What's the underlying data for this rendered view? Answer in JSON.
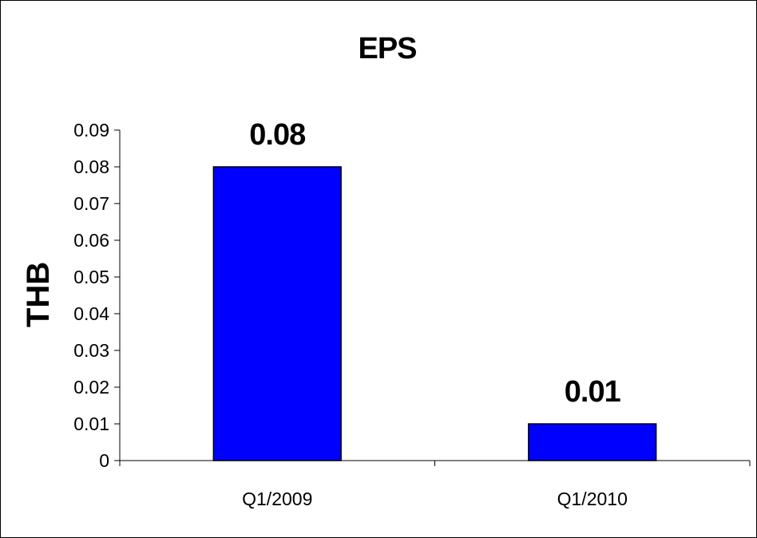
{
  "chart_data": {
    "type": "bar",
    "title": "EPS",
    "xlabel": "",
    "ylabel": "THB",
    "categories": [
      "Q1/2009",
      "Q1/2010"
    ],
    "values": [
      0.08,
      0.01
    ],
    "data_labels": [
      "0.08",
      "0.01"
    ],
    "ylim": [
      0,
      0.09
    ],
    "yticks": [
      0,
      0.01,
      0.02,
      0.03,
      0.04,
      0.05,
      0.06,
      0.07,
      0.08,
      0.09
    ],
    "ytick_labels": [
      "0",
      "0.01",
      "0.02",
      "0.03",
      "0.04",
      "0.05",
      "0.06",
      "0.07",
      "0.08",
      "0.09"
    ],
    "grid": false,
    "legend": "none",
    "bar_color": "#0000FF",
    "bar_edge_color": "#000000"
  }
}
